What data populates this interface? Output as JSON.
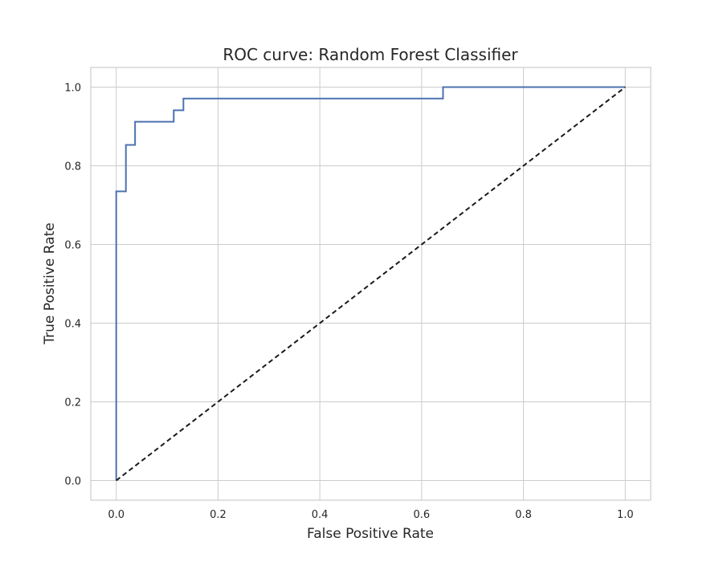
{
  "chart_data": {
    "type": "line",
    "title": "ROC curve: Random Forest Classifier",
    "xlabel": "False Positive Rate",
    "ylabel": "True Positive Rate",
    "xlim": [
      -0.05,
      1.05
    ],
    "ylim": [
      -0.05,
      1.05
    ],
    "xticks": [
      0.0,
      0.2,
      0.4,
      0.6,
      0.8,
      1.0
    ],
    "yticks": [
      0.0,
      0.2,
      0.4,
      0.6,
      0.8,
      1.0
    ],
    "xtick_labels": [
      "0.0",
      "0.2",
      "0.4",
      "0.6",
      "0.8",
      "1.0"
    ],
    "ytick_labels": [
      "0.0",
      "0.2",
      "0.4",
      "0.6",
      "0.8",
      "1.0"
    ],
    "grid": true,
    "series": [
      {
        "style": "step",
        "color": "#4c72b0",
        "x": [
          0.0,
          0.0,
          0.019,
          0.019,
          0.037,
          0.037,
          0.113,
          0.113,
          0.132,
          0.132,
          0.642,
          0.642,
          1.0
        ],
        "y": [
          0.0,
          0.735,
          0.735,
          0.853,
          0.853,
          0.912,
          0.912,
          0.941,
          0.941,
          0.971,
          0.971,
          1.0,
          1.0
        ]
      },
      {
        "style": "dashed",
        "color": "#1a1a1a",
        "x": [
          0.0,
          1.0
        ],
        "y": [
          0.0,
          1.0
        ]
      }
    ]
  }
}
